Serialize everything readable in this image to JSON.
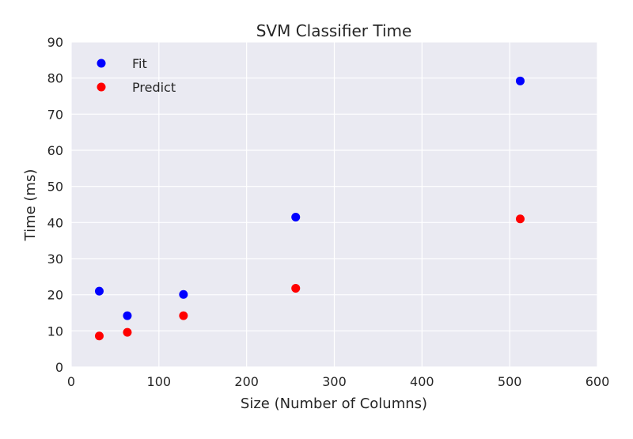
{
  "chart_data": {
    "type": "scatter",
    "title": "SVM Classifier Time",
    "xlabel": "Size (Number of Columns)",
    "ylabel": "Time (ms)",
    "xlim": [
      0,
      600
    ],
    "ylim": [
      0,
      90
    ],
    "xticks": [
      0,
      100,
      200,
      300,
      400,
      500,
      600
    ],
    "yticks": [
      0,
      10,
      20,
      30,
      40,
      50,
      60,
      70,
      80,
      90
    ],
    "grid": true,
    "legend_position": "top-left",
    "background_color": "#eaeaf2",
    "grid_color": "#ffffff",
    "series": [
      {
        "name": "Fit",
        "color": "#0000ff",
        "x": [
          32,
          64,
          128,
          256,
          512
        ],
        "y": [
          21.0,
          14.2,
          20.1,
          41.5,
          79.2
        ]
      },
      {
        "name": "Predict",
        "color": "#ff0000",
        "x": [
          32,
          64,
          128,
          256,
          512
        ],
        "y": [
          8.6,
          9.6,
          14.2,
          21.8,
          41.0
        ]
      }
    ]
  }
}
